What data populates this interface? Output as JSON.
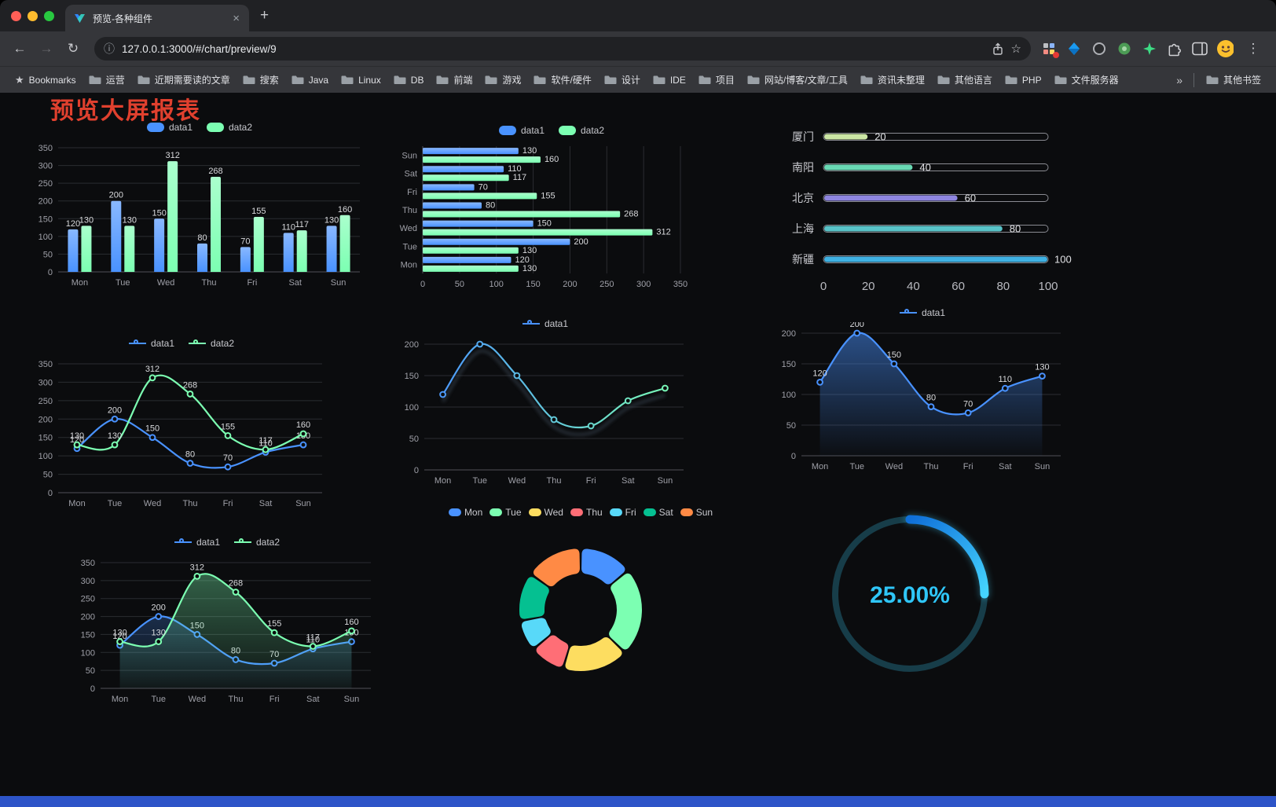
{
  "browser": {
    "tab_title": "预览-各种组件",
    "url": "127.0.0.1:3000/#/chart/preview/9",
    "bookmarks_label": "Bookmarks",
    "bookmarks": [
      "运营",
      "近期需要读的文章",
      "搜索",
      "Java",
      "Linux",
      "DB",
      "前端",
      "游戏",
      "软件/硬件",
      "设计",
      "IDE",
      "项目",
      "网站/博客/文章/工具",
      "资讯未整理",
      "其他语言",
      "PHP",
      "文件服务器"
    ],
    "other_bookmarks": "其他书签"
  },
  "icons": {
    "back": "←",
    "forward": "→",
    "reload": "↻",
    "info": "ⓘ",
    "star": "☆",
    "menu": "⋮",
    "close": "×",
    "new_tab": "+",
    "overflow": "»",
    "bookmarks_star": "★"
  },
  "page": {
    "title": "预览大屏报表",
    "title_color": "#e0402e",
    "footer_color": "#2d54c8",
    "background": "#0b0c0e"
  },
  "chart_data": [
    {
      "id": "grouped-bar",
      "type": "bar",
      "categories": [
        "Mon",
        "Tue",
        "Wed",
        "Thu",
        "Fri",
        "Sat",
        "Sun"
      ],
      "series": [
        {
          "name": "data1",
          "color": "#4992ff",
          "values": [
            120,
            200,
            150,
            80,
            70,
            110,
            130
          ]
        },
        {
          "name": "data2",
          "color": "#7cffb2",
          "values": [
            130,
            130,
            312,
            268,
            155,
            117,
            160
          ]
        }
      ],
      "ylim": [
        0,
        350
      ],
      "ytick": 50,
      "legend_position": "top",
      "grid": true,
      "value_labels": true
    },
    {
      "id": "horizontal-bar",
      "type": "bar-horizontal",
      "categories": [
        "Mon",
        "Tue",
        "Wed",
        "Thu",
        "Fri",
        "Sat",
        "Sun"
      ],
      "series": [
        {
          "name": "data1",
          "color": "#4992ff",
          "values": [
            120,
            200,
            150,
            80,
            70,
            110,
            130
          ]
        },
        {
          "name": "data2",
          "color": "#7cffb2",
          "values": [
            130,
            130,
            312,
            268,
            155,
            117,
            160
          ]
        }
      ],
      "xlim": [
        0,
        350
      ],
      "xtick": 50,
      "legend_position": "top",
      "grid": true,
      "value_labels": true
    },
    {
      "id": "city-progress",
      "type": "progress",
      "categories": [
        "厦门",
        "南阳",
        "北京",
        "上海",
        "新疆"
      ],
      "values": [
        20,
        40,
        60,
        80,
        100
      ],
      "colors": [
        "#cbe6a4",
        "#69d9b4",
        "#8e86e0",
        "#58c3c8",
        "#3fb1e3"
      ],
      "xlim": [
        0,
        100
      ],
      "xticks": [
        0,
        20,
        40,
        60,
        80,
        100
      ]
    },
    {
      "id": "line-two-series",
      "type": "line",
      "categories": [
        "Mon",
        "Tue",
        "Wed",
        "Thu",
        "Fri",
        "Sat",
        "Sun"
      ],
      "series": [
        {
          "name": "data1",
          "color": "#4992ff",
          "values": [
            120,
            200,
            150,
            80,
            70,
            110,
            130
          ]
        },
        {
          "name": "data2",
          "color": "#7cffb2",
          "values": [
            130,
            130,
            312,
            268,
            155,
            117,
            160
          ]
        }
      ],
      "ylim": [
        0,
        350
      ],
      "ytick": 50,
      "smooth": true,
      "value_labels": true
    },
    {
      "id": "line-gradient",
      "type": "line",
      "categories": [
        "Mon",
        "Tue",
        "Wed",
        "Thu",
        "Fri",
        "Sat",
        "Sun"
      ],
      "series": [
        {
          "name": "data1",
          "color": "#4992ff",
          "gradient": [
            "#4992ff",
            "#7cffb2"
          ],
          "values": [
            120,
            200,
            150,
            80,
            70,
            110,
            130
          ]
        }
      ],
      "ylim": [
        0,
        200
      ],
      "ytick": 50,
      "smooth": true,
      "ghost": true,
      "value_labels": false
    },
    {
      "id": "area-single",
      "type": "line",
      "categories": [
        "Mon",
        "Tue",
        "Wed",
        "Thu",
        "Fri",
        "Sat",
        "Sun"
      ],
      "series": [
        {
          "name": "data1",
          "color": "#4992ff",
          "area": [
            0.5,
            0.02
          ],
          "values": [
            120,
            200,
            150,
            80,
            70,
            110,
            130
          ]
        }
      ],
      "ylim": [
        0,
        200
      ],
      "ytick": 50,
      "smooth": true,
      "value_labels": true
    },
    {
      "id": "line-area-two",
      "type": "line",
      "categories": [
        "Mon",
        "Tue",
        "Wed",
        "Thu",
        "Fri",
        "Sat",
        "Sun"
      ],
      "series": [
        {
          "name": "data1",
          "color": "#4992ff",
          "area": [
            0.25,
            0.02
          ],
          "values": [
            120,
            200,
            150,
            80,
            70,
            110,
            130
          ]
        },
        {
          "name": "data2",
          "color": "#7cffb2",
          "area": [
            0.35,
            0.04
          ],
          "values": [
            130,
            130,
            312,
            268,
            155,
            117,
            160
          ]
        }
      ],
      "ylim": [
        0,
        350
      ],
      "ytick": 50,
      "smooth": true,
      "value_labels": true
    },
    {
      "id": "weekday-donut",
      "type": "donut",
      "categories": [
        "Mon",
        "Tue",
        "Wed",
        "Thu",
        "Fri",
        "Sat",
        "Sun"
      ],
      "values": [
        120,
        200,
        150,
        80,
        70,
        110,
        130
      ],
      "colors": [
        "#4992ff",
        "#7cffb2",
        "#fddd60",
        "#ff6e76",
        "#58d9f9",
        "#05c091",
        "#ff8a45"
      ]
    },
    {
      "id": "percent-gauge",
      "type": "gauge",
      "value": 25,
      "label": "25.00%",
      "color": "#2fc6f8",
      "arc_colors": [
        "#0f6fd8",
        "#45d4ff"
      ],
      "track_color": "#173d49"
    }
  ]
}
